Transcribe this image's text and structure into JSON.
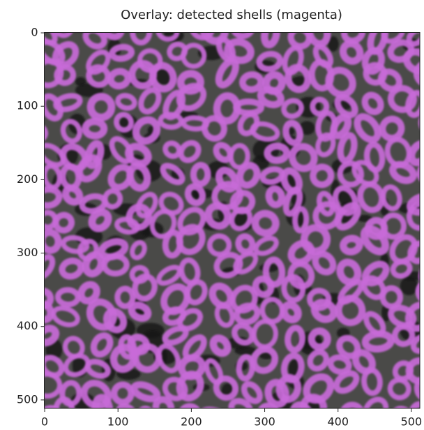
{
  "chart_data": {
    "type": "image",
    "title": "Overlay: detected shells (magenta)",
    "xlim": [
      -0.5,
      511.5
    ],
    "ylim": [
      511.5,
      -0.5
    ],
    "xticks": [
      0,
      100,
      200,
      300,
      400,
      500
    ],
    "yticks": [
      0,
      100,
      200,
      300,
      400,
      500
    ],
    "color": "#c86ad8"
  }
}
